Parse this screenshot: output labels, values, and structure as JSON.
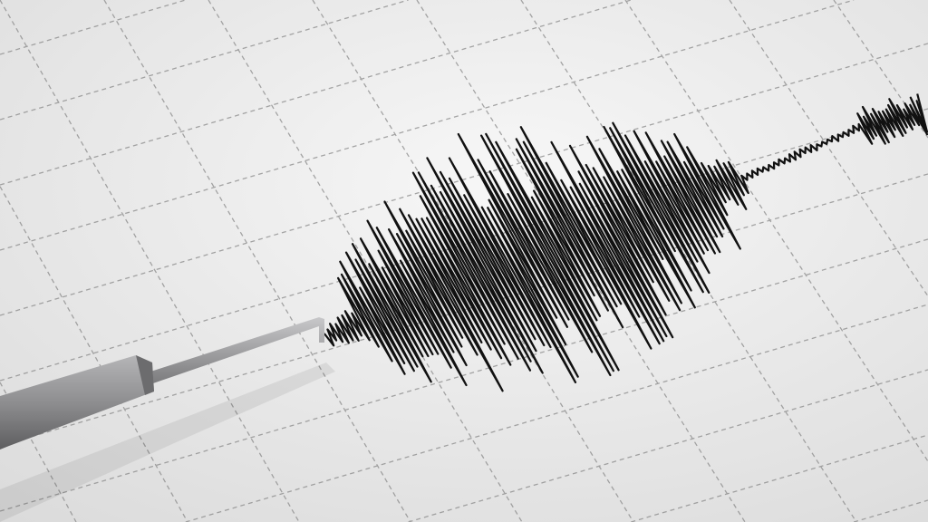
{
  "scene": {
    "subject": "seismograph",
    "colors": {
      "paper_light": "#f6f6f6",
      "paper_shadow": "#dcdcdc",
      "grid": "#8a8a8a",
      "trace": "#111111",
      "stylus": "#9a9a9c"
    },
    "icons": [
      "seismograph-trace",
      "stylus-pen",
      "grid-paper"
    ]
  }
}
